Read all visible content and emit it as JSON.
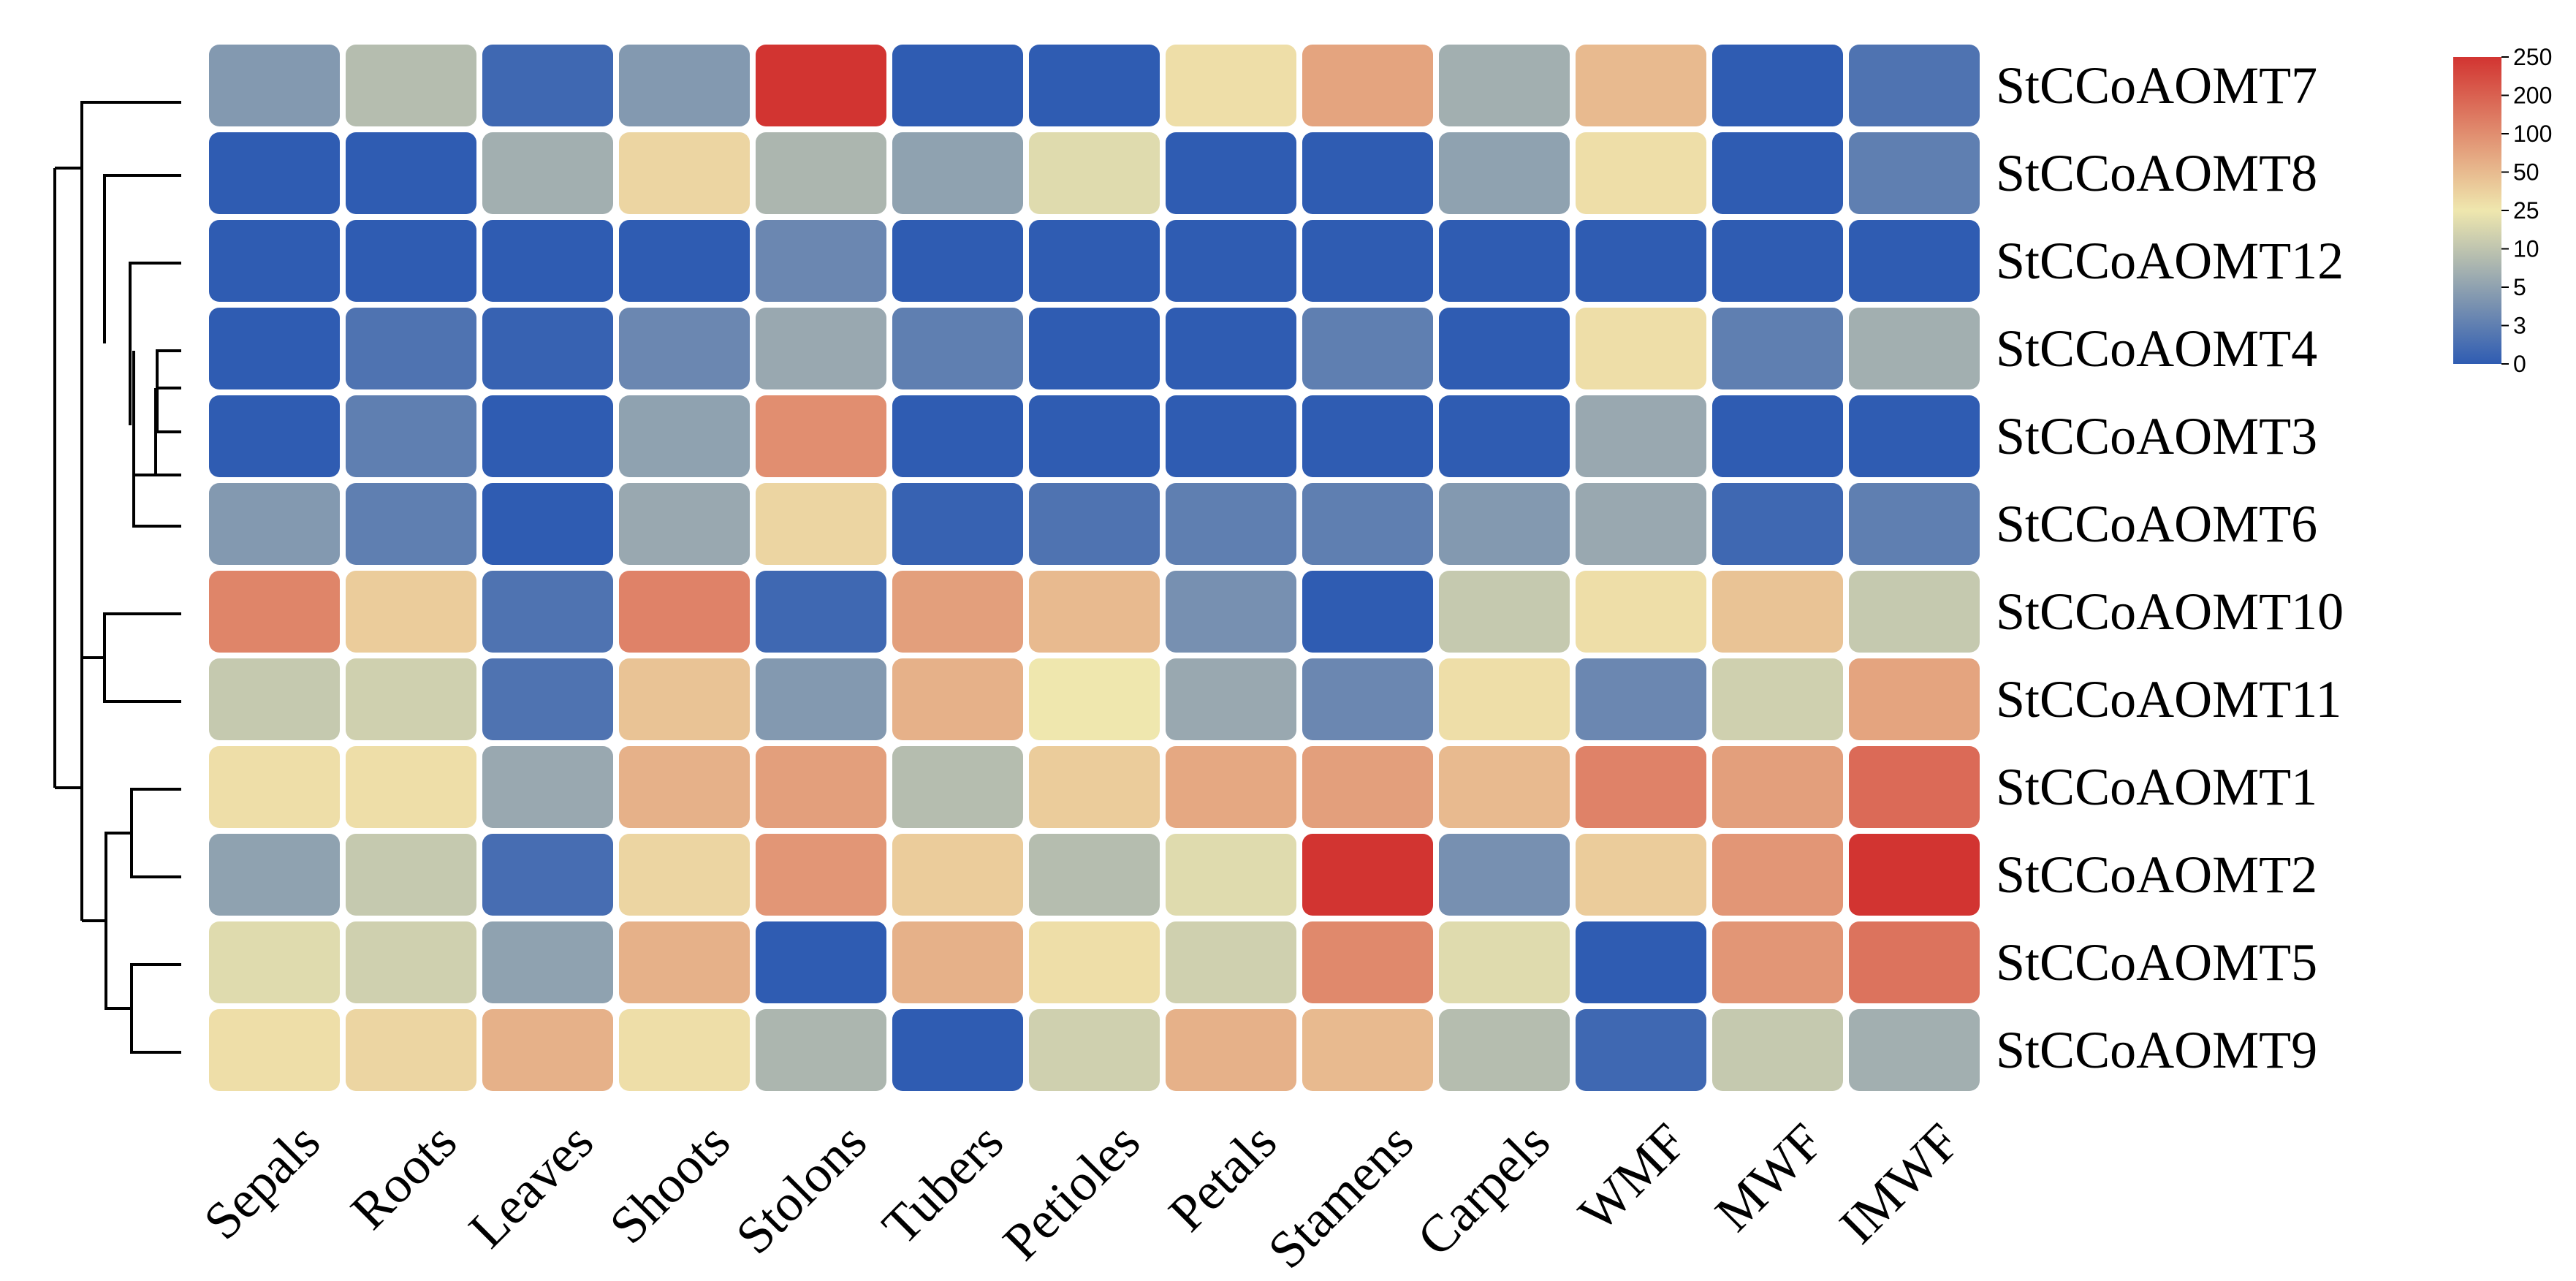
{
  "chart_data": {
    "type": "heatmap",
    "title": "",
    "columns": [
      "Sepals",
      "Roots",
      "Leaves",
      "Shoots",
      "Stolons",
      "Tubers",
      "Petioles",
      "Petals",
      "Stamens",
      "Carpels",
      "WMF",
      "MWF",
      "IMWF"
    ],
    "rows": [
      "StCCoAOMT7",
      "StCCoAOMT8",
      "StCCoAOMT12",
      "StCCoAOMT4",
      "StCCoAOMT3",
      "StCCoAOMT6",
      "StCCoAOMT10",
      "StCCoAOMT11",
      "StCCoAOMT1",
      "StCCoAOMT2",
      "StCCoAOMT5",
      "StCCoAOMT9"
    ],
    "values": [
      [
        4.5,
        9,
        1,
        4.5,
        250,
        0,
        0,
        30,
        75,
        7,
        50,
        0,
        2
      ],
      [
        0,
        0,
        7,
        35,
        8,
        5,
        20,
        0,
        0,
        5,
        30,
        0,
        3
      ],
      [
        0,
        0,
        0,
        0,
        3.5,
        0,
        0,
        0,
        0,
        0,
        0,
        0,
        0
      ],
      [
        0,
        2,
        0.5,
        3.5,
        6,
        3,
        0,
        0,
        3,
        0,
        30,
        3,
        7
      ],
      [
        0,
        3,
        0,
        5,
        100,
        0,
        0,
        0,
        0,
        0,
        6,
        0,
        0
      ],
      [
        4.5,
        3,
        0,
        6,
        35,
        0.5,
        2,
        3,
        3,
        4.5,
        6,
        1,
        3
      ],
      [
        120,
        40,
        2,
        125,
        1,
        80,
        50,
        4,
        0,
        12,
        30,
        45,
        12
      ],
      [
        12,
        15,
        2,
        45,
        4.5,
        60,
        25,
        6,
        3.5,
        30,
        3.5,
        15,
        75
      ],
      [
        30,
        30,
        6,
        60,
        80,
        9,
        40,
        70,
        80,
        50,
        125,
        80,
        180
      ],
      [
        5,
        12,
        1.5,
        35,
        90,
        40,
        9,
        20,
        250,
        4,
        40,
        90,
        250
      ],
      [
        20,
        15,
        5,
        60,
        0,
        60,
        30,
        15,
        110,
        20,
        0,
        90,
        160
      ],
      [
        30,
        35,
        60,
        30,
        8,
        0,
        15,
        60,
        50,
        9,
        1,
        12,
        7
      ]
    ],
    "colorbar": {
      "ticks": [
        250,
        200,
        100,
        50,
        25,
        10,
        5,
        3,
        0
      ],
      "colors": {
        "low": "#2f5cb2",
        "mid": "#efe7ae",
        "high": "#d23431"
      }
    },
    "dendrogram": "row clustering on left side"
  }
}
